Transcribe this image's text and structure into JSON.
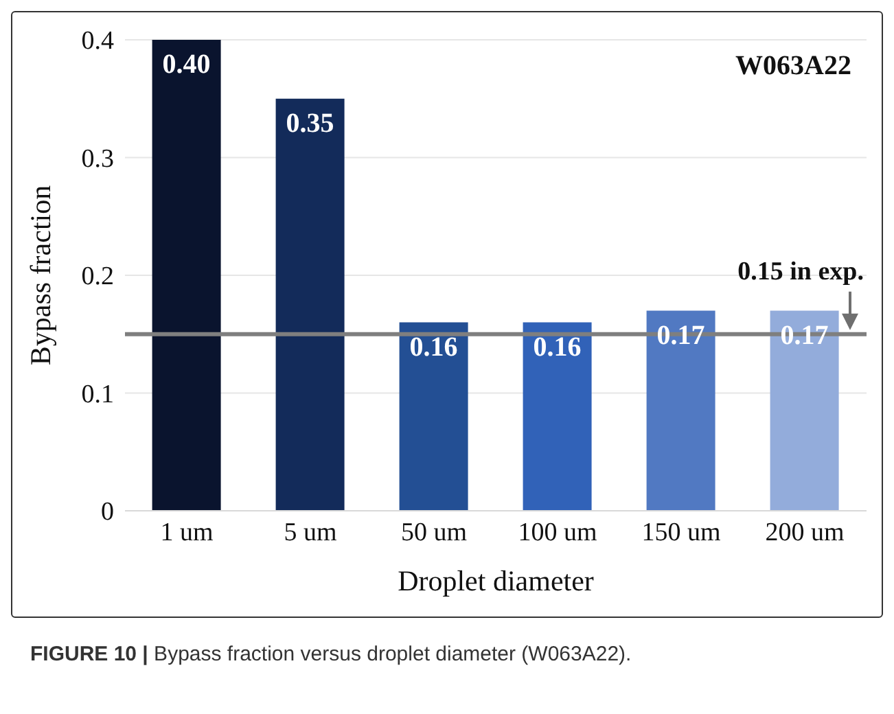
{
  "chart_data": {
    "type": "bar",
    "xlabel": "Droplet diameter",
    "ylabel": "Bypass fraction",
    "categories": [
      "1 um",
      "5 um",
      "50 um",
      "100 um",
      "150 um",
      "200 um"
    ],
    "values": [
      0.4,
      0.35,
      0.16,
      0.16,
      0.17,
      0.17
    ],
    "colors": [
      "#0a142e",
      "#132b5a",
      "#234f94",
      "#3162b8",
      "#5179c2",
      "#93acdb"
    ],
    "value_labels": [
      "0.40",
      "0.35",
      "0.16",
      "0.16",
      "0.17",
      "0.17"
    ],
    "ylim": [
      0,
      0.4
    ],
    "yticks": [
      0,
      0.1,
      0.2,
      0.3,
      0.4
    ],
    "grid": "y",
    "ref_lines": [
      {
        "axis": "y",
        "value": 0.15,
        "label": "0.15 in exp.",
        "color": "#7f7f7f"
      }
    ],
    "annotations": [
      "W063A22",
      "FIGURE 10 | Bypass fraction versus droplet diameter (W063A22)."
    ]
  }
}
